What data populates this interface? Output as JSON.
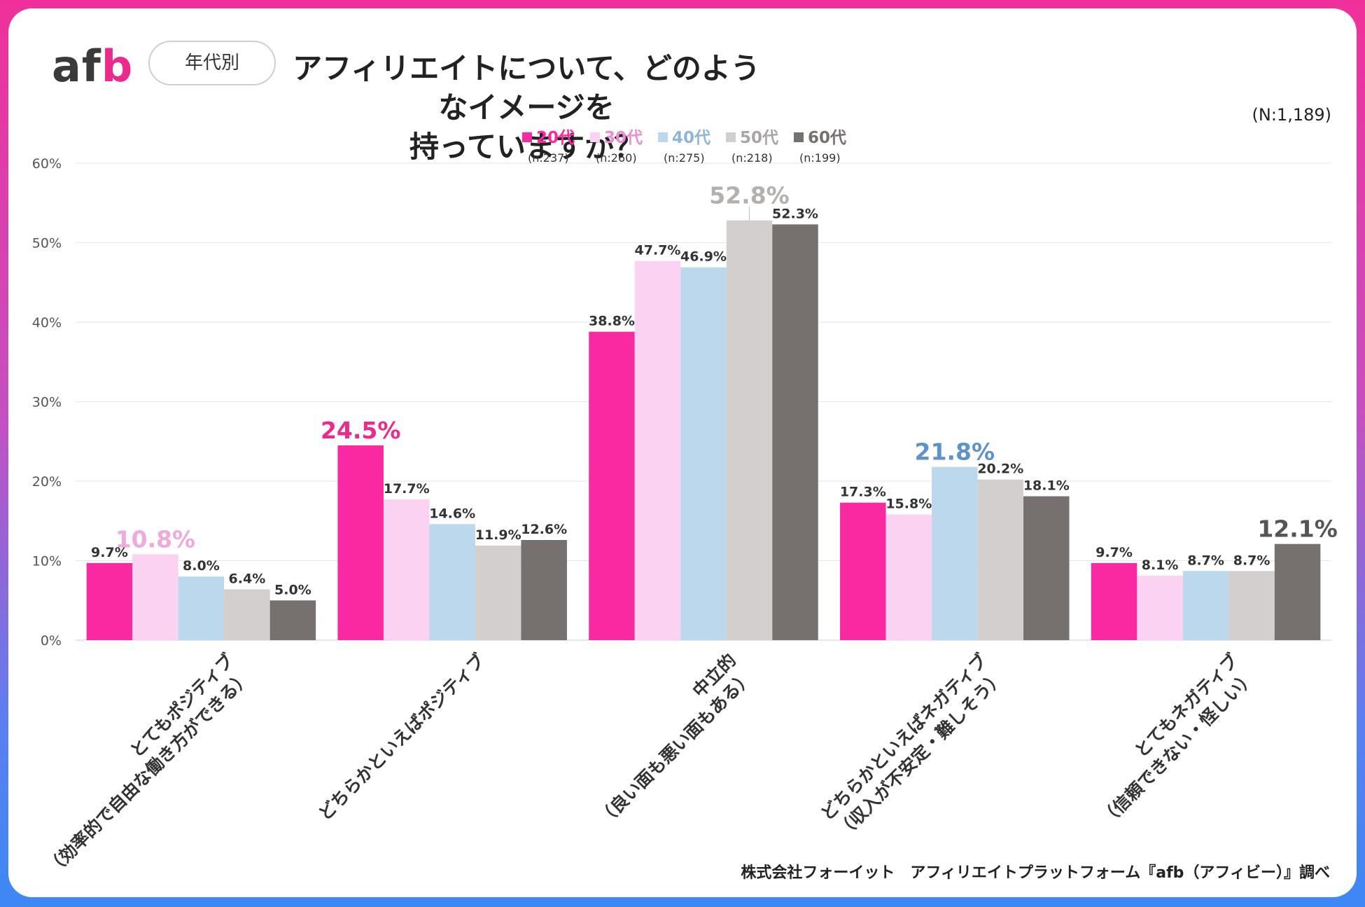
{
  "logo": {
    "text_a": "af",
    "text_b": "b"
  },
  "filter_pill": "年代別",
  "title_line1": "アフィリエイトについて、どのようなイメージを",
  "title_line2": "持っていますか？",
  "total_n": "(N:1,189)",
  "footer": "株式会社フォーイット　アフィリエイトプラットフォーム『afb（アフィビー）』調べ",
  "colors": {
    "s20": "#f92aa1",
    "s30": "#fbd2f1",
    "s40": "#bcd8ed",
    "s50": "#d3cfcf",
    "s60": "#76716e"
  },
  "chart_data": {
    "type": "bar",
    "title": "アフィリエイトについて、どのようなイメージを持っていますか？",
    "ylim": [
      0,
      60
    ],
    "yticks": [
      0,
      10,
      20,
      30,
      40,
      50,
      60
    ],
    "ytick_labels": [
      "0%",
      "10%",
      "20%",
      "30%",
      "40%",
      "50%",
      "60%"
    ],
    "grid": true,
    "legend_position": "top-center",
    "categories": [
      {
        "line1": "とてもポジティブ",
        "line2": "（効率的で自由な働き方ができる）"
      },
      {
        "line1": "どちらかといえばポジティブ",
        "line2": ""
      },
      {
        "line1": "中立的",
        "line2": "（良い面も悪い面もある）"
      },
      {
        "line1": "どちらかといえばネガティブ",
        "line2": "（収入が不安定・難しそう）"
      },
      {
        "line1": "とてもネガティブ",
        "line2": "（信頼できない・怪しい）"
      }
    ],
    "series": [
      {
        "name": "20代",
        "n": "(n:237)",
        "color": "#f92aa1",
        "values": [
          9.7,
          24.5,
          38.8,
          17.3,
          9.7
        ]
      },
      {
        "name": "30代",
        "n": "(n:260)",
        "color": "#fbd2f1",
        "values": [
          10.8,
          17.7,
          47.7,
          15.8,
          8.1
        ]
      },
      {
        "name": "40代",
        "n": "(n:275)",
        "color": "#bcd8ed",
        "values": [
          8.0,
          14.6,
          46.9,
          21.8,
          8.7
        ]
      },
      {
        "name": "50代",
        "n": "(n:218)",
        "color": "#d3cfcf",
        "values": [
          6.4,
          11.9,
          52.8,
          20.2,
          8.7
        ]
      },
      {
        "name": "60代",
        "n": "(n:199)",
        "color": "#76716e",
        "values": [
          5.0,
          12.6,
          52.3,
          18.1,
          12.1
        ]
      }
    ],
    "highlights": [
      {
        "category": 0,
        "series": 1,
        "color": "#f0a9dd"
      },
      {
        "category": 1,
        "series": 0,
        "color": "#ec2a8e"
      },
      {
        "category": 2,
        "series": 3,
        "color": "#b3b0ae"
      },
      {
        "category": 3,
        "series": 2,
        "color": "#5d93c9"
      },
      {
        "category": 4,
        "series": 4,
        "color": "#555555"
      }
    ]
  }
}
